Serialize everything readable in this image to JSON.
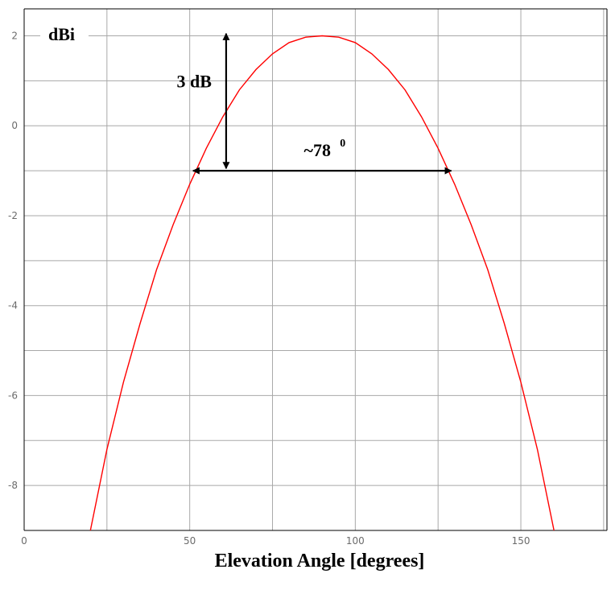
{
  "chart_data": {
    "type": "line",
    "title": "",
    "xlabel": "Elevation Angle [degrees]",
    "ylabel": "dBi",
    "xlim": [
      0,
      176
    ],
    "ylim": [
      -9,
      2.6
    ],
    "grid": true,
    "x_grid": [
      25,
      50,
      75,
      100,
      125,
      150,
      175
    ],
    "y_grid": [
      2,
      1,
      0,
      -1,
      -2,
      -3,
      -4,
      -5,
      -6,
      -7,
      -8
    ],
    "x_ticks": [
      {
        "value": 0,
        "label": "0"
      },
      {
        "value": 50,
        "label": "50"
      },
      {
        "value": 100,
        "label": "100"
      },
      {
        "value": 150,
        "label": "150"
      }
    ],
    "y_ticks": [
      {
        "value": 2,
        "label": "2"
      },
      {
        "value": 0,
        "label": "0"
      },
      {
        "value": -2,
        "label": "-2"
      },
      {
        "value": -4,
        "label": "-4"
      },
      {
        "value": -6,
        "label": "-6"
      },
      {
        "value": -8,
        "label": "-8"
      }
    ],
    "series": [
      {
        "color": "#ff0000",
        "x": [
          20,
          25,
          30,
          35,
          40,
          45,
          50,
          55,
          60,
          65,
          70,
          75,
          80,
          85,
          90,
          95,
          100,
          105,
          110,
          115,
          120,
          125,
          130,
          135,
          140,
          145,
          150,
          155,
          160
        ],
        "y": [
          -9.0,
          -7.2,
          -5.7,
          -4.4,
          -3.2,
          -2.2,
          -1.3,
          -0.5,
          0.2,
          0.8,
          1.25,
          1.6,
          1.85,
          1.97,
          2.0,
          1.97,
          1.85,
          1.6,
          1.25,
          0.8,
          0.2,
          -0.5,
          -1.3,
          -2.2,
          -3.2,
          -4.4,
          -5.7,
          -7.2,
          -9.0
        ]
      }
    ],
    "annotations": {
      "vertical": {
        "label": "3 dB",
        "x": 61,
        "y_top": 2.05,
        "y_bottom": -0.95
      },
      "horizontal": {
        "label": "~78",
        "superscript": "0",
        "y": -1.0,
        "x_start": 51,
        "x_end": 129
      }
    }
  }
}
